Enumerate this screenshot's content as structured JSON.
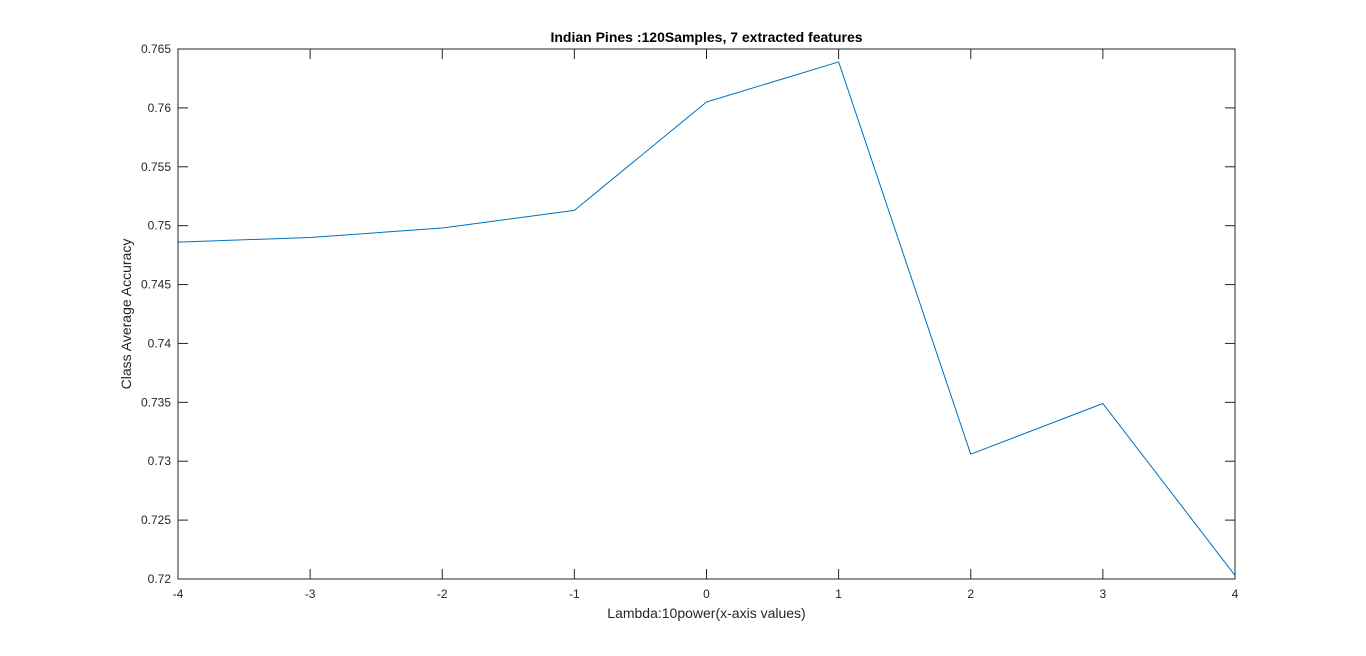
{
  "chart_data": {
    "type": "line",
    "title": "Indian Pines :120Samples, 7 extracted features",
    "xlabel": "Lambda:10power(x-axis values)",
    "ylabel": "Class Average Accuracy",
    "xlim": [
      -4,
      4
    ],
    "ylim": [
      0.72,
      0.765
    ],
    "xticks": [
      -4,
      -3,
      -2,
      -1,
      0,
      1,
      2,
      3,
      4
    ],
    "xtick_labels": [
      "-4",
      "-3",
      "-2",
      "-1",
      "0",
      "1",
      "2",
      "3",
      "4"
    ],
    "yticks": [
      0.72,
      0.725,
      0.73,
      0.735,
      0.74,
      0.745,
      0.75,
      0.755,
      0.76,
      0.765
    ],
    "ytick_labels": [
      "0.72",
      "0.725",
      "0.73",
      "0.735",
      "0.74",
      "0.745",
      "0.75",
      "0.755",
      "0.76",
      "0.765"
    ],
    "grid": false,
    "legend": "none",
    "series": [
      {
        "color": "#0072BD",
        "x": [
          -4,
          -3,
          -2,
          -1,
          0,
          1,
          2,
          3,
          4
        ],
        "y": [
          0.7486,
          0.749,
          0.7498,
          0.7513,
          0.7605,
          0.7639,
          0.7306,
          0.7349,
          0.7203
        ]
      }
    ]
  }
}
